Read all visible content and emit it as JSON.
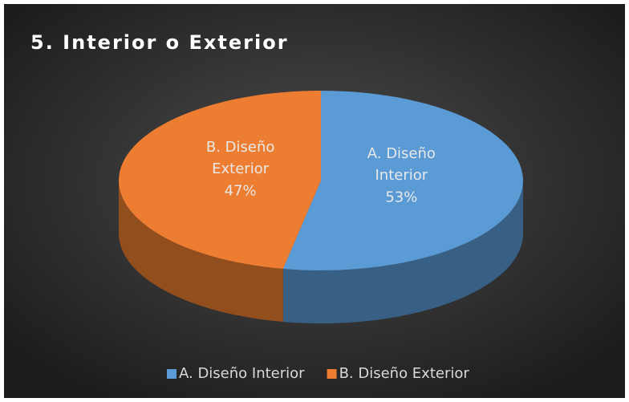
{
  "chart_data": {
    "type": "pie",
    "title": "5. Interior o Exterior",
    "categories": [
      "A. Diseño Interior",
      "B. Diseño Exterior"
    ],
    "values": [
      53,
      47
    ],
    "value_labels": [
      "53%",
      "47%"
    ],
    "colors": [
      "#5b9bd5",
      "#ed7d31"
    ],
    "legend": "bottom"
  }
}
